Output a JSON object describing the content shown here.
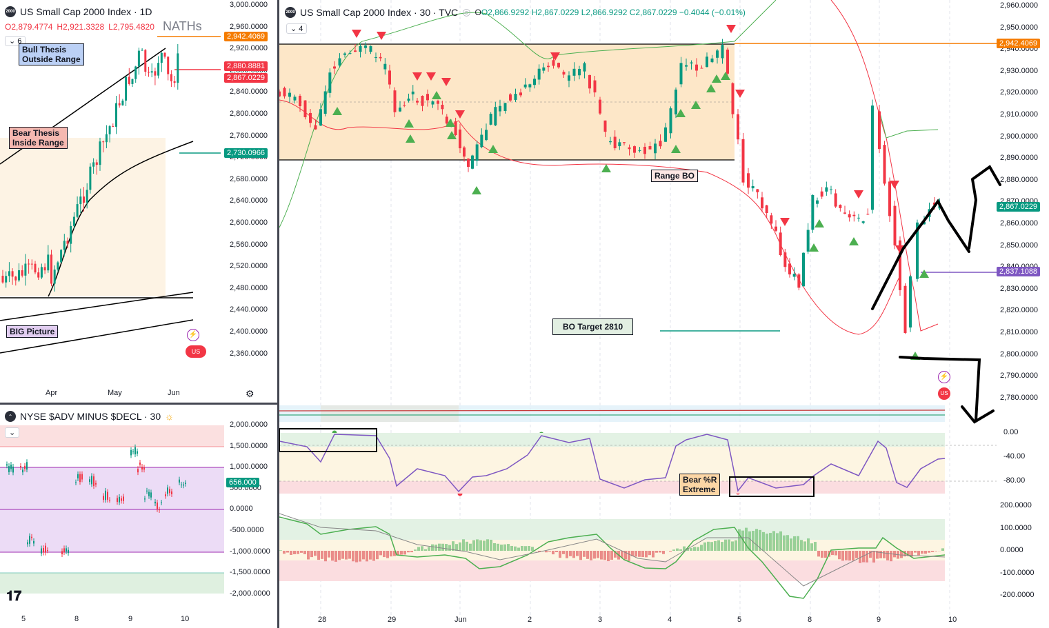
{
  "left_chart": {
    "title": "US Small Cap 2000 Index · 1D",
    "ohlc": {
      "o": "O2,879.4774",
      "h": "H2,921.3328",
      "l": "L2,795.4820"
    },
    "indicator_count": "6",
    "nathes_label": "NATHs",
    "price_axis": [
      "3,000.0000",
      "2,960.0000",
      "2,920.0000",
      "2,880.0000",
      "2,840.0000",
      "2,800.0000",
      "2,760.0000",
      "2,720.0000",
      "2,680.0000",
      "2,640.0000",
      "2,600.0000",
      "2,560.0000",
      "2,520.0000",
      "2,480.0000",
      "2,440.0000",
      "2,400.0000",
      "2,360.0000"
    ],
    "price_badges": {
      "orange": "2,942.4069",
      "red1": "2,880.8881",
      "red2": "2,867.0229",
      "green": "2,730.0966"
    },
    "time_axis": [
      "Apr",
      "May",
      "Jun"
    ],
    "notes": {
      "bull": "Bull Thesis\nOutside Range",
      "bear": "Bear Thesis\nInside Range",
      "big": "BIG Picture"
    },
    "colors": {
      "bull_bg": "#bbd0f5",
      "bear_bg": "#f5b8b0",
      "big_bg": "#e1cdf0"
    }
  },
  "breadth_chart": {
    "title": "NYSE $ADV MINUS $DECL · 30",
    "axis": [
      "2,000.0000",
      "1,500.0000",
      "1,000.0000",
      "500.0000",
      "0.0000",
      "-500.0000",
      "-1,000.0000",
      "-1,500.0000",
      "-2,000.0000"
    ],
    "value_badge": "656.000",
    "time_axis": [
      "5",
      "8",
      "9",
      "10"
    ]
  },
  "main_chart": {
    "title": "US Small Cap 2000 Index · 30 · TVC",
    "ohlc": {
      "o": "O2,866.9292",
      "h": "H2,867.0229",
      "l": "L2,866.9292",
      "c": "C2,867.0229",
      "chg": "−0.4044 (−0.01%)"
    },
    "indicator_count": "4",
    "price_axis": [
      "2,960.0000",
      "2,950.0000",
      "2,940.0000",
      "2,930.0000",
      "2,920.0000",
      "2,910.0000",
      "2,900.0000",
      "2,890.0000",
      "2,880.0000",
      "2,870.0000",
      "2,860.0000",
      "2,850.0000",
      "2,840.0000",
      "2,830.0000",
      "2,820.0000",
      "2,810.0000",
      "2,800.0000",
      "2,790.0000",
      "2,780.0000"
    ],
    "price_badges": {
      "orange": "2,942.4069",
      "green": "2,867.0229",
      "purple": "2,837.1088"
    },
    "notes": {
      "range_bo": "Range BO",
      "bo_target": "BO Target 2810",
      "bear_r": "Bear %R\nExtreme"
    },
    "willr_axis": [
      "0.00",
      "-40.00",
      "-80.00"
    ],
    "macd_axis": [
      "200.0000",
      "100.0000",
      "0.0000",
      "-100.0000",
      "-200.0000"
    ],
    "time_axis": [
      "28",
      "29",
      "Jun",
      "2",
      "3",
      "4",
      "5",
      "8",
      "9",
      "10"
    ]
  }
}
